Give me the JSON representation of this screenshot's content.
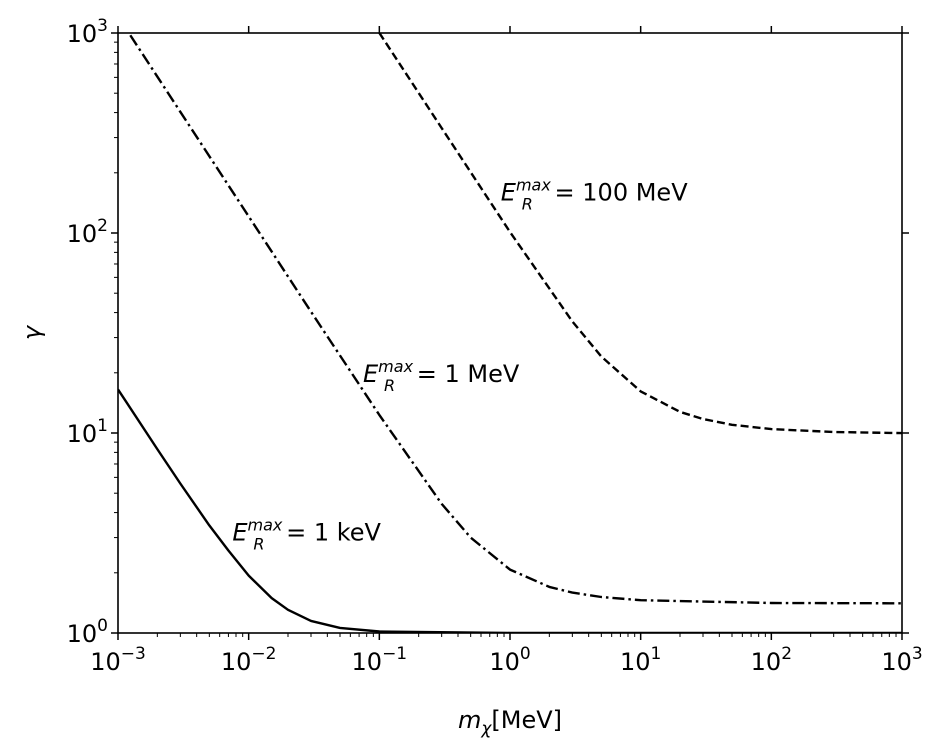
{
  "chart_data": {
    "type": "line",
    "xlabel": "m_χ[MeV]",
    "xlabel_parts": {
      "base": "m",
      "sub": "χ",
      "unit": "[MeV]"
    },
    "ylabel": "γ",
    "xscale": "log",
    "yscale": "log",
    "xlim": [
      0.001,
      1000
    ],
    "ylim": [
      1,
      1000
    ],
    "grid": false,
    "x_ticks": [
      {
        "value": 0.001,
        "base": "10",
        "exp": "−3"
      },
      {
        "value": 0.01,
        "base": "10",
        "exp": "−2"
      },
      {
        "value": 0.1,
        "base": "10",
        "exp": "−1"
      },
      {
        "value": 1,
        "base": "10",
        "exp": "0"
      },
      {
        "value": 10,
        "base": "10",
        "exp": "1"
      },
      {
        "value": 100,
        "base": "10",
        "exp": "2"
      },
      {
        "value": 1000,
        "base": "10",
        "exp": "3"
      }
    ],
    "y_ticks": [
      {
        "value": 1,
        "base": "10",
        "exp": "0"
      },
      {
        "value": 10,
        "base": "10",
        "exp": "1"
      },
      {
        "value": 100,
        "base": "10",
        "exp": "2"
      },
      {
        "value": 1000,
        "base": "10",
        "exp": "3"
      }
    ],
    "series": [
      {
        "name": "E_R^max = 1 keV",
        "label": {
          "E": "E",
          "sub": "R",
          "sup": "max",
          "rest": " = 1 keV",
          "at": [
            0.0075,
            2.9
          ]
        },
        "dash": "solid",
        "x": [
          0.001,
          0.002,
          0.003,
          0.005,
          0.007,
          0.01,
          0.015,
          0.02,
          0.03,
          0.05,
          0.1,
          1,
          1000
        ],
        "y": [
          16.52,
          8.31,
          5.59,
          3.45,
          2.585,
          1.936,
          1.495,
          1.306,
          1.15,
          1.06,
          1.018,
          1.001,
          1.0005
        ]
      },
      {
        "name": "E_R^max = 1 MeV",
        "label": {
          "E": "E",
          "sub": "R",
          "sup": "max",
          "rest": " = 1 MeV",
          "at": [
            0.075,
            18
          ]
        },
        "dash": "dashdot",
        "x": [
          0.001,
          0.003,
          0.01,
          0.03,
          0.1,
          0.3,
          0.5,
          1,
          2,
          3,
          5,
          10,
          100,
          1000
        ],
        "y": [
          1211,
          403.7,
          121.1,
          40.41,
          12.32,
          4.42,
          3.0,
          2.076,
          1.701,
          1.593,
          1.514,
          1.458,
          1.412,
          1.407
        ]
      },
      {
        "name": "E_R^max = 100 MeV",
        "label": {
          "E": "E",
          "sub": "R",
          "sup": "max",
          "rest": " = 100 MeV",
          "at": [
            0.85,
            145
          ]
        },
        "dash": "dashed",
        "x": [
          0.1,
          0.3,
          1,
          3,
          5,
          10,
          20,
          30,
          50,
          100,
          300,
          1000
        ],
        "y": [
          1002.6,
          334.5,
          101.2,
          36.15,
          24.14,
          16.14,
          12.755,
          11.75,
          10.99,
          10.455,
          10.11,
          9.993
        ]
      }
    ]
  }
}
